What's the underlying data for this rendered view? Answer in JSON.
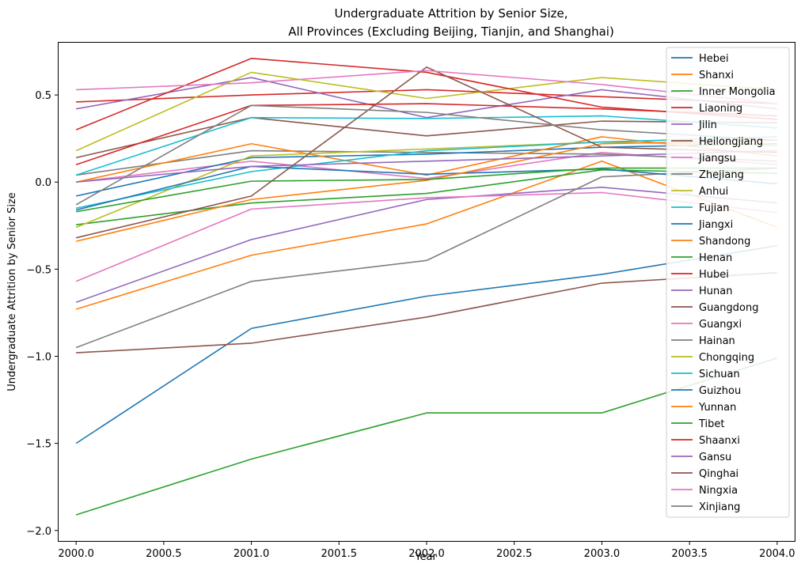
{
  "chart_data": {
    "type": "line",
    "title_lines": [
      "Undergraduate Attrition by Senior Size,",
      "All Provinces (Excluding Beijing, Tianjin, and Shanghai)"
    ],
    "xlabel": "Year",
    "ylabel": "Undergraduate Attrition by Senior Size",
    "xlim": [
      1999.9,
      2004.1
    ],
    "ylim": [
      -2.06,
      0.8
    ],
    "x_ticks": [
      2000.0,
      2000.5,
      2001.0,
      2001.5,
      2002.0,
      2002.5,
      2003.0,
      2003.5,
      2004.0
    ],
    "x_tick_labels": [
      "2000.0",
      "2000.5",
      "2001.0",
      "2001.5",
      "2002.0",
      "2002.5",
      "2003.0",
      "2003.5",
      "2004.0"
    ],
    "y_ticks": [
      -2.0,
      -1.5,
      -1.0,
      -0.5,
      0.0,
      0.5
    ],
    "y_tick_labels": [
      "−2.0",
      "−1.5",
      "−1.0",
      "−0.5",
      "0.0",
      "0.5"
    ],
    "grid": false,
    "legend_position": "top-right",
    "x": [
      2000,
      2001,
      2002,
      2003,
      2004
    ],
    "series": [
      {
        "name": "Hebei",
        "color": "#1f77b4",
        "values": [
          -1.5,
          -0.84,
          -0.655,
          -0.53,
          -0.365
        ]
      },
      {
        "name": "Shanxi",
        "color": "#ff7f0e",
        "values": [
          -0.73,
          -0.42,
          -0.24,
          0.12,
          -0.26
        ]
      },
      {
        "name": "Inner Mongolia",
        "color": "#2ca02c",
        "values": [
          -1.91,
          -1.59,
          -1.325,
          -1.325,
          -1.01
        ]
      },
      {
        "name": "Liaoning",
        "color": "#d62728",
        "values": [
          0.46,
          0.5,
          0.53,
          0.49,
          0.45
        ]
      },
      {
        "name": "Jilin",
        "color": "#9467bd",
        "values": [
          0.42,
          0.6,
          0.37,
          0.53,
          0.42
        ]
      },
      {
        "name": "Heilongjiang",
        "color": "#8c564b",
        "values": [
          0.14,
          0.37,
          0.265,
          0.35,
          0.34
        ]
      },
      {
        "name": "Jiangsu",
        "color": "#e377c2",
        "values": [
          0.0,
          0.12,
          0.02,
          0.17,
          0.1
        ]
      },
      {
        "name": "Zhejiang",
        "color": "#7f7f7f",
        "values": [
          0.04,
          0.18,
          0.17,
          0.16,
          0.12
        ]
      },
      {
        "name": "Anhui",
        "color": "#bcbd22",
        "values": [
          0.18,
          0.63,
          0.48,
          0.6,
          0.53
        ]
      },
      {
        "name": "Fujian",
        "color": "#17becf",
        "values": [
          0.04,
          0.37,
          0.365,
          0.38,
          0.31
        ]
      },
      {
        "name": "Jiangxi",
        "color": "#1f77b4",
        "values": [
          -0.08,
          0.14,
          0.16,
          0.2,
          0.22
        ]
      },
      {
        "name": "Shandong",
        "color": "#ff7f0e",
        "values": [
          0.0,
          0.22,
          0.04,
          0.26,
          0.15
        ]
      },
      {
        "name": "Henan",
        "color": "#2ca02c",
        "values": [
          -0.245,
          -0.12,
          -0.065,
          0.07,
          0.05
        ]
      },
      {
        "name": "Hubei",
        "color": "#d62728",
        "values": [
          0.1,
          0.44,
          0.45,
          0.42,
          0.38
        ]
      },
      {
        "name": "Hunan",
        "color": "#9467bd",
        "values": [
          -0.69,
          -0.33,
          -0.1,
          -0.03,
          -0.12
        ]
      },
      {
        "name": "Guangdong",
        "color": "#8c564b",
        "values": [
          -0.98,
          -0.925,
          -0.775,
          -0.58,
          -0.52
        ]
      },
      {
        "name": "Guangxi",
        "color": "#e377c2",
        "values": [
          -0.57,
          -0.155,
          -0.09,
          -0.06,
          -0.175
        ]
      },
      {
        "name": "Hainan",
        "color": "#7f7f7f",
        "values": [
          -0.95,
          -0.57,
          -0.45,
          0.03,
          0.08
        ]
      },
      {
        "name": "Chongqing",
        "color": "#bcbd22",
        "values": [
          -0.26,
          0.15,
          0.19,
          0.23,
          0.21
        ]
      },
      {
        "name": "Sichuan",
        "color": "#17becf",
        "values": [
          -0.15,
          0.06,
          0.18,
          0.23,
          0.26
        ]
      },
      {
        "name": "Guizhou",
        "color": "#1f77b4",
        "values": [
          -0.16,
          0.09,
          0.045,
          0.075,
          -0.01
        ]
      },
      {
        "name": "Yunnan",
        "color": "#ff7f0e",
        "values": [
          -0.34,
          -0.1,
          0.01,
          0.22,
          0.24
        ]
      },
      {
        "name": "Tibet",
        "color": "#2ca02c",
        "values": [
          -0.17,
          0.005,
          0.015,
          0.08,
          0.08
        ]
      },
      {
        "name": "Shaanxi",
        "color": "#d62728",
        "values": [
          0.3,
          0.71,
          0.63,
          0.43,
          0.36
        ]
      },
      {
        "name": "Gansu",
        "color": "#9467bd",
        "values": [
          0.0,
          0.09,
          0.12,
          0.15,
          0.18
        ]
      },
      {
        "name": "Qinghai",
        "color": "#8c564b",
        "values": [
          -0.32,
          -0.08,
          0.66,
          0.2,
          0.17
        ]
      },
      {
        "name": "Ningxia",
        "color": "#e377c2",
        "values": [
          0.53,
          0.57,
          0.64,
          0.56,
          0.45
        ]
      },
      {
        "name": "Xinjiang",
        "color": "#7f7f7f",
        "values": [
          -0.13,
          0.44,
          0.4,
          0.3,
          0.24
        ]
      }
    ]
  }
}
